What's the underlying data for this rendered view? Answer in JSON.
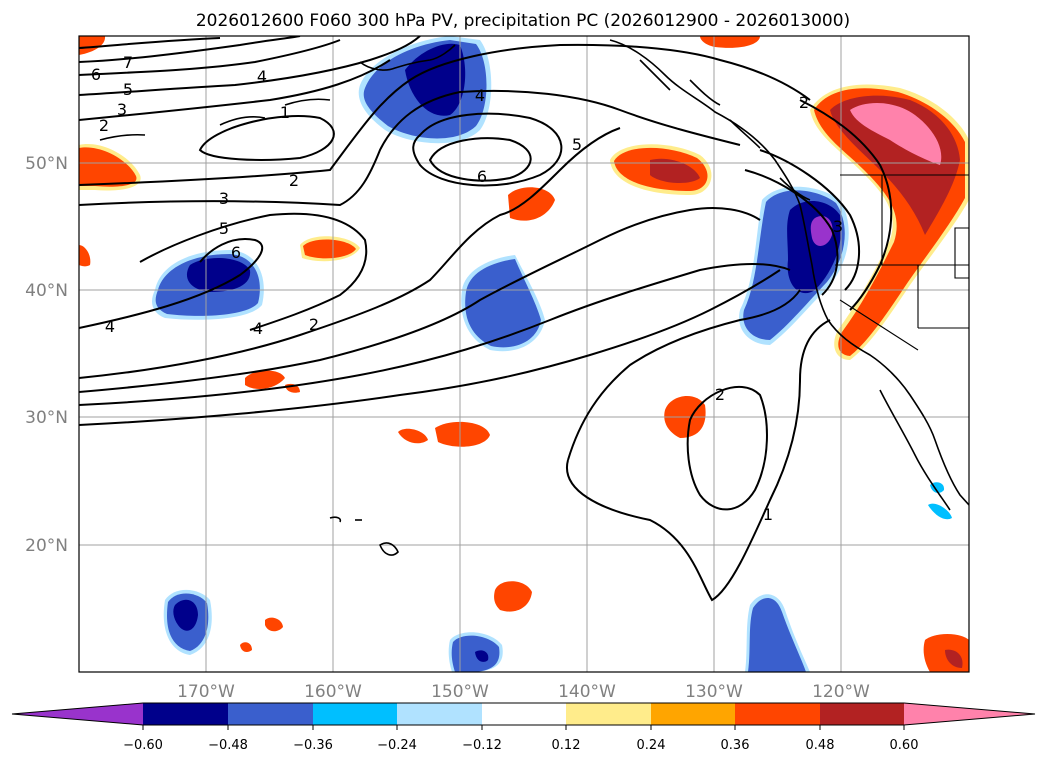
{
  "title": "2026012600 F060 300 hPa PV, precipitation PC (2026012900 - 2026013000)",
  "lat_labels": [
    "50°N",
    "40°N",
    "30°N",
    "20°N"
  ],
  "lon_labels": [
    "170°W",
    "160°W",
    "150°W",
    "140°W",
    "130°W",
    "120°W"
  ],
  "pv_contour_labels": [
    "7",
    "6",
    "5",
    "4",
    "3",
    "2",
    "1",
    "2",
    "4",
    "4",
    "5",
    "6",
    "3",
    "2",
    "5",
    "6",
    "4",
    "3",
    "2",
    "1",
    "2"
  ],
  "colorbar": {
    "tick_labels": [
      "−0.60",
      "−0.48",
      "−0.36",
      "−0.24",
      "−0.12",
      "0.12",
      "0.24",
      "0.36",
      "0.48",
      "0.60"
    ],
    "colors": [
      "#9933cc",
      "#00008b",
      "#3a5fcd",
      "#00bfff",
      "#b0e2ff",
      "#ffffff",
      "#ffec8b",
      "#ffa500",
      "#ff4500",
      "#b22222",
      "#ff82ab"
    ]
  },
  "map": {
    "region": "North Pacific and western North America",
    "lon_range": [
      -180,
      -110
    ],
    "lat_range": [
      10,
      60
    ],
    "grid": true
  }
}
